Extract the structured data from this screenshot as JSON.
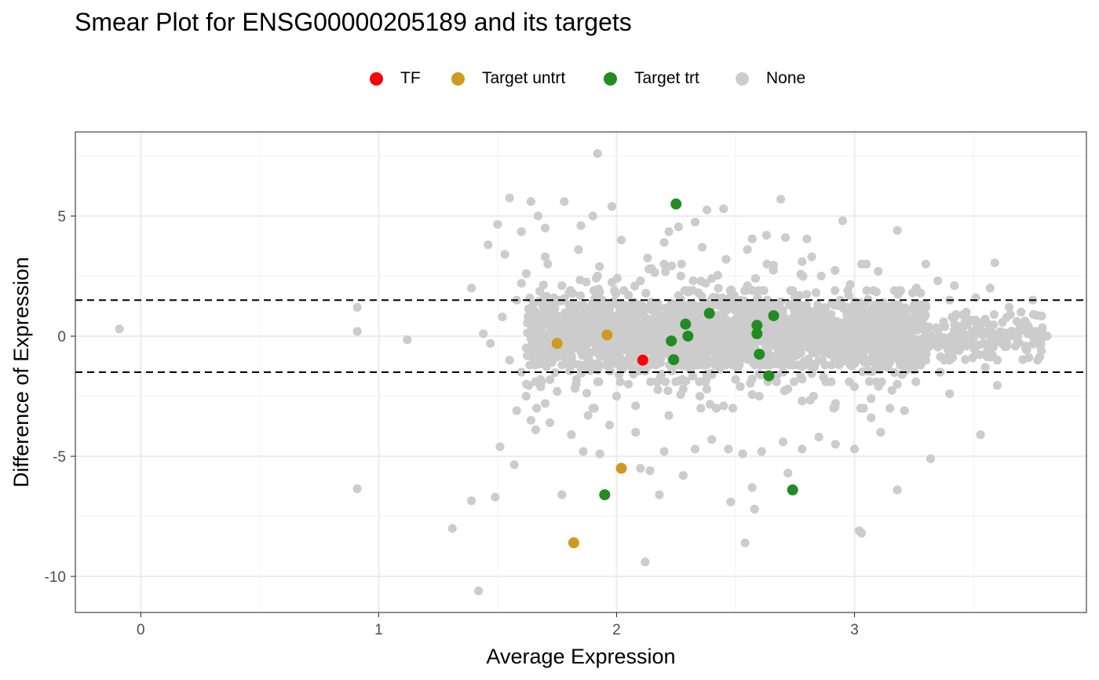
{
  "chart_data": {
    "type": "scatter",
    "title": "Smear Plot for ENSG00000205189 and its targets",
    "xlabel": "Average Expression",
    "ylabel": "Difference of Expression",
    "xlim": [
      -0.275,
      3.975
    ],
    "ylim": [
      -11.5,
      8.5
    ],
    "x_ticks": [
      0,
      1,
      2,
      3
    ],
    "x_tick_labels": [
      "0",
      "1",
      "2",
      "3"
    ],
    "y_ticks": [
      -10,
      -5,
      0,
      5
    ],
    "y_tick_labels": [
      "-10",
      "-5",
      "0",
      "5"
    ],
    "grid": true,
    "legend_position": "top",
    "threshold_lines": [
      1.5,
      -1.5
    ],
    "series": [
      {
        "name": "TF",
        "color": "#ff0000",
        "points": [
          [
            2.11,
            -1.0
          ]
        ]
      },
      {
        "name": "Target untrt",
        "color": "#d09a1e",
        "points": [
          [
            1.75,
            -0.3
          ],
          [
            1.96,
            0.05
          ],
          [
            2.02,
            -5.5
          ],
          [
            1.82,
            -8.6
          ]
        ]
      },
      {
        "name": "Target trt",
        "color": "#228b22",
        "points": [
          [
            2.25,
            5.5
          ],
          [
            2.29,
            0.5
          ],
          [
            2.39,
            0.95
          ],
          [
            2.23,
            -0.2
          ],
          [
            2.3,
            0.0
          ],
          [
            2.24,
            -0.98
          ],
          [
            2.59,
            0.45
          ],
          [
            2.59,
            0.1
          ],
          [
            2.66,
            0.85
          ],
          [
            2.6,
            -0.75
          ],
          [
            2.64,
            -1.65
          ],
          [
            1.95,
            -6.6
          ],
          [
            2.74,
            -6.4
          ]
        ]
      },
      {
        "name": "None",
        "color": "#cccccc",
        "points": [
          [
            -0.09,
            0.3
          ],
          [
            0.91,
            1.2
          ],
          [
            0.91,
            0.2
          ],
          [
            1.12,
            -0.15
          ],
          [
            0.91,
            -6.35
          ],
          [
            1.31,
            -8.0
          ],
          [
            1.39,
            -6.85
          ],
          [
            1.42,
            -10.6
          ],
          [
            1.49,
            -6.7
          ],
          [
            1.51,
            -4.6
          ],
          [
            1.57,
            -5.35
          ],
          [
            1.39,
            2.0
          ],
          [
            1.46,
            3.8
          ],
          [
            1.5,
            4.65
          ],
          [
            1.55,
            5.75
          ],
          [
            1.6,
            4.35
          ],
          [
            1.64,
            5.6
          ],
          [
            1.67,
            5.0
          ],
          [
            1.7,
            4.5
          ],
          [
            1.78,
            5.6
          ],
          [
            1.85,
            4.6
          ],
          [
            1.9,
            5.0
          ],
          [
            1.92,
            7.6
          ],
          [
            1.98,
            5.4
          ],
          [
            1.44,
            0.1
          ],
          [
            1.47,
            -0.3
          ],
          [
            1.52,
            0.8
          ],
          [
            1.55,
            -1.0
          ],
          [
            1.6,
            -1.5
          ],
          [
            1.62,
            -2.5
          ],
          [
            1.58,
            -3.1
          ],
          [
            1.64,
            -3.5
          ],
          [
            1.66,
            -3.9
          ],
          [
            1.7,
            -2.8
          ],
          [
            1.72,
            -3.6
          ],
          [
            1.77,
            -6.6
          ],
          [
            1.81,
            -4.1
          ],
          [
            1.86,
            -4.8
          ],
          [
            1.9,
            -3.0
          ],
          [
            1.93,
            -4.9
          ],
          [
            1.97,
            -3.7
          ],
          [
            2.1,
            -5.5
          ],
          [
            2.12,
            -9.4
          ],
          [
            2.14,
            -5.6
          ],
          [
            2.18,
            -6.6
          ],
          [
            2.08,
            -4.0
          ],
          [
            2.2,
            -4.8
          ],
          [
            2.28,
            -5.8
          ],
          [
            2.33,
            -4.7
          ],
          [
            2.4,
            -4.3
          ],
          [
            2.47,
            -4.7
          ],
          [
            2.48,
            -6.9
          ],
          [
            2.53,
            -4.9
          ],
          [
            2.54,
            -8.6
          ],
          [
            2.57,
            -6.3
          ],
          [
            2.58,
            -7.2
          ],
          [
            2.61,
            -4.8
          ],
          [
            2.7,
            -4.4
          ],
          [
            2.72,
            -5.7
          ],
          [
            2.78,
            -4.7
          ],
          [
            2.85,
            -4.2
          ],
          [
            2.92,
            -4.5
          ],
          [
            3.0,
            -4.7
          ],
          [
            3.02,
            -8.1
          ],
          [
            3.03,
            -8.2
          ],
          [
            3.07,
            -3.4
          ],
          [
            3.11,
            -4.0
          ],
          [
            3.18,
            -6.4
          ],
          [
            3.21,
            -3.1
          ],
          [
            3.32,
            -5.1
          ],
          [
            3.4,
            -2.4
          ],
          [
            3.53,
            -4.1
          ],
          [
            3.6,
            -2.05
          ],
          [
            3.18,
            4.4
          ],
          [
            3.3,
            3.0
          ],
          [
            3.35,
            2.3
          ],
          [
            3.42,
            2.1
          ],
          [
            3.51,
            1.6
          ],
          [
            3.59,
            3.05
          ],
          [
            3.57,
            2.0
          ],
          [
            3.65,
            1.2
          ],
          [
            3.7,
            1.0
          ],
          [
            3.75,
            1.5
          ],
          [
            3.79,
            0.35
          ],
          [
            3.81,
            0.0
          ],
          [
            3.78,
            -0.4
          ],
          [
            3.73,
            0.1
          ],
          [
            3.66,
            0.2
          ],
          [
            3.62,
            -0.3
          ],
          [
            3.58,
            -0.8
          ],
          [
            3.55,
            -1.3
          ],
          [
            3.5,
            -0.1
          ],
          [
            3.46,
            0.4
          ],
          [
            3.4,
            -1.0
          ],
          [
            3.3,
            1.2
          ],
          [
            2.95,
            4.8
          ],
          [
            2.94,
            1.5
          ],
          [
            2.69,
            5.7
          ],
          [
            2.57,
            4.05
          ],
          [
            2.45,
            5.3
          ],
          [
            2.38,
            5.25
          ],
          [
            2.33,
            4.75
          ],
          [
            2.22,
            4.35
          ],
          [
            2.26,
            4.55
          ],
          [
            2.02,
            4.0
          ],
          [
            2.2,
            3.9
          ],
          [
            2.36,
            3.7
          ],
          [
            2.55,
            3.6
          ],
          [
            2.63,
            4.2
          ],
          [
            2.71,
            4.1
          ],
          [
            2.8,
            4.05
          ],
          [
            2.82,
            3.3
          ],
          [
            2.78,
            3.1
          ],
          [
            2.66,
            2.95
          ],
          [
            2.46,
            3.2
          ],
          [
            2.13,
            3.25
          ],
          [
            1.84,
            3.6
          ],
          [
            1.7,
            3.3
          ],
          [
            1.53,
            3.4
          ],
          [
            1.62,
            2.6
          ],
          [
            1.6,
            2.2
          ],
          [
            1.58,
            1.5
          ],
          [
            1.64,
            -0.8
          ],
          [
            1.68,
            -1.8
          ],
          [
            1.75,
            -2.3
          ],
          [
            1.83,
            -2.0
          ],
          [
            1.88,
            -3.3
          ],
          [
            2.0,
            -2.5
          ],
          [
            2.05,
            -2.0
          ],
          [
            2.22,
            -3.3
          ],
          [
            2.35,
            -2.5
          ],
          [
            2.45,
            -2.9
          ],
          [
            2.6,
            -2.5
          ],
          [
            2.78,
            -2.7
          ],
          [
            2.92,
            -2.8
          ],
          [
            3.07,
            -2.6
          ],
          [
            3.2,
            -1.6
          ],
          [
            3.3,
            -1.0
          ],
          [
            3.05,
            3.0
          ],
          [
            3.1,
            2.7
          ],
          [
            3.26,
            2.0
          ],
          [
            3.4,
            1.5
          ],
          [
            3.47,
            1.0
          ],
          [
            3.08,
            1.9
          ],
          [
            2.86,
            2.5
          ],
          [
            2.74,
            1.9
          ],
          [
            2.55,
            2.1
          ],
          [
            2.4,
            2.4
          ],
          [
            2.27,
            2.5
          ],
          [
            2.1,
            2.3
          ],
          [
            1.92,
            2.5
          ],
          [
            1.77,
            2.1
          ],
          [
            2.01,
            -1.6
          ],
          [
            2.17,
            -1.9
          ],
          [
            2.31,
            -1.4
          ],
          [
            2.5,
            -1.8
          ],
          [
            2.7,
            -1.5
          ],
          [
            2.88,
            -1.9
          ],
          [
            3.14,
            -1.3
          ],
          [
            3.36,
            -1.5
          ],
          [
            3.44,
            -0.6
          ],
          [
            3.25,
            -0.4
          ],
          [
            3.0,
            -0.8
          ],
          [
            2.85,
            -1.0
          ],
          [
            1.66,
            1.0
          ],
          [
            1.72,
            1.5
          ],
          [
            1.8,
            1.8
          ],
          [
            1.9,
            1.2
          ],
          [
            2.05,
            1.7
          ],
          [
            2.18,
            1.2
          ],
          [
            2.42,
            1.6
          ],
          [
            2.6,
            1.3
          ],
          [
            2.77,
            1.7
          ],
          [
            2.95,
            1.2
          ],
          [
            3.12,
            1.4
          ],
          [
            3.28,
            0.6
          ],
          [
            3.38,
            0.4
          ],
          [
            1.7,
            -1.2
          ],
          [
            1.87,
            -1.4
          ],
          [
            2.08,
            -2.9
          ],
          [
            2.28,
            -2.2
          ],
          [
            2.52,
            -2.1
          ],
          [
            2.72,
            -2.2
          ],
          [
            3.0,
            -2.1
          ],
          [
            3.18,
            -2.0
          ]
        ],
        "clusters": [
          {
            "x": [
              1.64,
              3.3
            ],
            "y": [
              -1.2,
              1.3
            ],
            "n": 1500
          },
          {
            "x": [
              1.62,
              3.3
            ],
            "y": [
              -1.9,
              1.9
            ],
            "n": 550
          },
          {
            "x": [
              1.62,
              3.2
            ],
            "y": [
              -3.0,
              3.0
            ],
            "n": 260
          },
          {
            "x": [
              3.3,
              3.8
            ],
            "y": [
              -1.0,
              0.9
            ],
            "n": 160
          }
        ]
      }
    ]
  }
}
